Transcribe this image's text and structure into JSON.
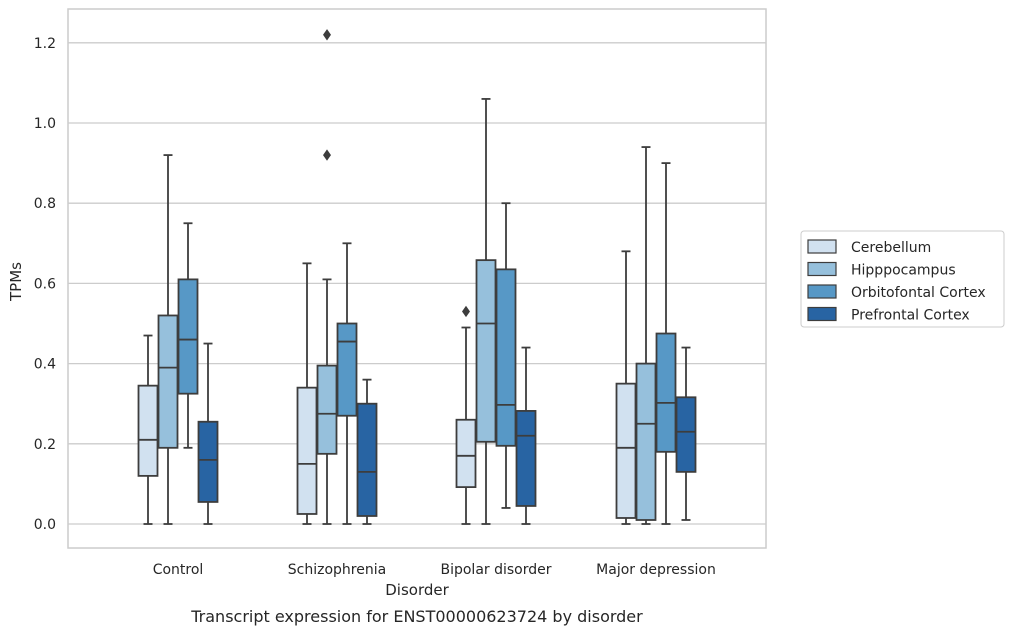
{
  "chart_data": {
    "type": "box",
    "caption": "Transcript expression for ENST00000623724 by disorder",
    "xlabel": "Disorder",
    "ylabel": "TPMs",
    "ylim": [
      -0.06,
      1.28
    ],
    "yticks": [
      0.0,
      0.2,
      0.4,
      0.6,
      0.8,
      1.0,
      1.2
    ],
    "ytick_labels": [
      "0.0",
      "0.2",
      "0.4",
      "0.6",
      "0.8",
      "1.0",
      "1.2"
    ],
    "grid": "horizontal",
    "legend_position": "right",
    "categories": [
      "Control",
      "Schizophrenia",
      "Bipolar disorder",
      "Major depression"
    ],
    "series": [
      {
        "name": "Cerebellum",
        "color": "#d1e1f0",
        "boxes": [
          {
            "whislo": 0.0,
            "q1": 0.12,
            "med": 0.21,
            "q3": 0.345,
            "whishi": 0.47,
            "fliers": []
          },
          {
            "whislo": 0.0,
            "q1": 0.025,
            "med": 0.15,
            "q3": 0.34,
            "whishi": 0.65,
            "fliers": []
          },
          {
            "whislo": 0.0,
            "q1": 0.092,
            "med": 0.17,
            "q3": 0.26,
            "whishi": 0.49,
            "fliers": [
              0.53
            ]
          },
          {
            "whislo": 0.0,
            "q1": 0.015,
            "med": 0.19,
            "q3": 0.35,
            "whishi": 0.68,
            "fliers": []
          }
        ]
      },
      {
        "name": "Hipppocampus",
        "color": "#96c0dc",
        "boxes": [
          {
            "whislo": 0.0,
            "q1": 0.19,
            "med": 0.39,
            "q3": 0.52,
            "whishi": 0.92,
            "fliers": []
          },
          {
            "whislo": 0.0,
            "q1": 0.175,
            "med": 0.275,
            "q3": 0.395,
            "whishi": 0.61,
            "fliers": [
              0.92,
              1.22
            ]
          },
          {
            "whislo": 0.0,
            "q1": 0.205,
            "med": 0.5,
            "q3": 0.658,
            "whishi": 1.06,
            "fliers": []
          },
          {
            "whislo": 0.0,
            "q1": 0.01,
            "med": 0.25,
            "q3": 0.4,
            "whishi": 0.94,
            "fliers": []
          }
        ]
      },
      {
        "name": "Orbitofontal Cortex",
        "color": "#5798c6",
        "boxes": [
          {
            "whislo": 0.19,
            "q1": 0.325,
            "med": 0.46,
            "q3": 0.61,
            "whishi": 0.75,
            "fliers": []
          },
          {
            "whislo": 0.0,
            "q1": 0.27,
            "med": 0.455,
            "q3": 0.5,
            "whishi": 0.7,
            "fliers": []
          },
          {
            "whislo": 0.04,
            "q1": 0.195,
            "med": 0.297,
            "q3": 0.635,
            "whishi": 0.8,
            "fliers": []
          },
          {
            "whislo": 0.0,
            "q1": 0.18,
            "med": 0.302,
            "q3": 0.475,
            "whishi": 0.9,
            "fliers": []
          }
        ]
      },
      {
        "name": "Prefrontal Cortex",
        "color": "#2864a3",
        "boxes": [
          {
            "whislo": 0.0,
            "q1": 0.055,
            "med": 0.16,
            "q3": 0.255,
            "whishi": 0.45,
            "fliers": []
          },
          {
            "whislo": 0.0,
            "q1": 0.02,
            "med": 0.13,
            "q3": 0.3,
            "whishi": 0.36,
            "fliers": []
          },
          {
            "whislo": 0.0,
            "q1": 0.045,
            "med": 0.22,
            "q3": 0.282,
            "whishi": 0.44,
            "fliers": []
          },
          {
            "whislo": 0.01,
            "q1": 0.13,
            "med": 0.23,
            "q3": 0.316,
            "whishi": 0.44,
            "fliers": []
          }
        ]
      }
    ]
  }
}
